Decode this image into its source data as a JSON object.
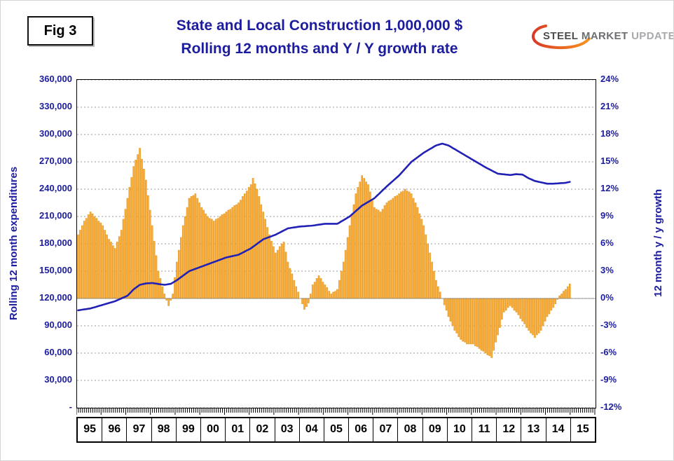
{
  "fig_label": "Fig 3",
  "title_line1": "State and Local Construction 1,000,000 $",
  "title_line2": "Rolling 12 months and Y / Y growth rate",
  "logo": {
    "word1": "STEEL",
    "word2": "MARKET",
    "word3": "UPDATE"
  },
  "colors": {
    "title_blue": "#1C1C9E",
    "axis_text": "#1C1C9E",
    "grid": "#9a9a9a",
    "bar_fill": "#FBAE3C",
    "bar_stroke": "#DE8F10",
    "line_blue": "#2121B5",
    "logo_orange_start": "#D93A26",
    "logo_orange_end": "#F7941D"
  },
  "chart_data": {
    "type": "combo bar + line",
    "title": "State and Local Construction 1,000,000 $ — Rolling 12 months and Y / Y growth rate",
    "x_start": "1995-01",
    "x_months": 240,
    "x_axis_years": [
      "95",
      "96",
      "97",
      "98",
      "99",
      "00",
      "01",
      "02",
      "03",
      "04",
      "05",
      "06",
      "07",
      "08",
      "09",
      "10",
      "11",
      "12",
      "13",
      "14",
      "15"
    ],
    "grid": "horizontal dashed",
    "left_axis": {
      "label": "Rolling 12 month expenditures",
      "min": 0,
      "max": 360000,
      "tick_step": 30000,
      "tick_labels": [
        "360,000",
        "330,000",
        "300,000",
        "270,000",
        "240,000",
        "210,000",
        "180,000",
        "150,000",
        "120,000",
        "90,000",
        "60,000",
        "30,000",
        "-"
      ]
    },
    "right_axis": {
      "label": "12 month y / y growth",
      "min": -12,
      "max": 24,
      "tick_step": 3,
      "tick_labels": [
        "24%",
        "21%",
        "18%",
        "15%",
        "12%",
        "9%",
        "6%",
        "3%",
        "0%",
        "-3%",
        "-6%",
        "-9%",
        "-12%"
      ]
    },
    "series": [
      {
        "name": "Rolling 12 month expenditures",
        "type": "line",
        "axis": "left",
        "color": "#2121B5",
        "values": [
          107000,
          107300,
          107700,
          108000,
          108300,
          108700,
          109000,
          109700,
          110300,
          111000,
          111700,
          112300,
          113000,
          113700,
          114300,
          115000,
          115700,
          116300,
          117000,
          118000,
          119000,
          120000,
          121000,
          122000,
          123000,
          125300,
          127700,
          130000,
          131700,
          133300,
          135000,
          135500,
          136000,
          136500,
          136700,
          136800,
          137000,
          136600,
          136300,
          135900,
          135500,
          135300,
          135000,
          135300,
          135700,
          136000,
          137300,
          138700,
          140000,
          141700,
          143300,
          145000,
          146700,
          148300,
          150000,
          150800,
          151700,
          152500,
          153300,
          154200,
          155000,
          155800,
          156700,
          157500,
          158300,
          159200,
          160000,
          160800,
          161700,
          162500,
          163300,
          164200,
          165000,
          165500,
          166000,
          166500,
          167000,
          167500,
          168000,
          169200,
          170300,
          171500,
          172700,
          173800,
          175000,
          176700,
          178300,
          180000,
          181700,
          183300,
          185000,
          185800,
          186700,
          187500,
          188300,
          189200,
          190000,
          191200,
          192300,
          193500,
          194700,
          195800,
          197000,
          197300,
          197700,
          198000,
          198300,
          198700,
          199000,
          199200,
          199300,
          199500,
          199700,
          199800,
          200000,
          200300,
          200700,
          201000,
          201300,
          201700,
          202000,
          202000,
          202000,
          202000,
          202000,
          202000,
          202000,
          203300,
          204700,
          206000,
          207300,
          208700,
          210000,
          212000,
          214000,
          216000,
          218000,
          220000,
          222000,
          223300,
          224700,
          226000,
          227300,
          228700,
          230000,
          232200,
          234300,
          236500,
          238700,
          240800,
          243000,
          245000,
          247000,
          249000,
          251000,
          253000,
          255000,
          257500,
          260000,
          262500,
          265000,
          267500,
          270000,
          271700,
          273300,
          275000,
          276700,
          278300,
          280000,
          281300,
          282700,
          284000,
          285300,
          286700,
          288000,
          288700,
          289300,
          290000,
          289300,
          288700,
          288000,
          286700,
          285300,
          284000,
          282700,
          281300,
          280000,
          278700,
          277300,
          276000,
          274700,
          273300,
          272000,
          270700,
          269300,
          268000,
          266700,
          265300,
          264000,
          262800,
          261700,
          260500,
          259300,
          258200,
          257000,
          256800,
          256500,
          256300,
          256000,
          255800,
          255500,
          255800,
          256200,
          256500,
          256300,
          256200,
          256000,
          254700,
          253300,
          252000,
          251000,
          250000,
          249000,
          248500,
          248000,
          247500,
          247000,
          246500,
          246000,
          246000,
          246000,
          246000,
          246200,
          246300,
          246500,
          246700,
          246800,
          247000,
          247500,
          248000
        ]
      },
      {
        "name": "12 month y / y growth",
        "type": "bar",
        "axis": "right",
        "color": "#FBAE3C",
        "stroke": "#DE8F10",
        "values": [
          7.0,
          7.5,
          8.0,
          8.5,
          8.8,
          9.2,
          9.5,
          9.3,
          9.0,
          8.8,
          8.5,
          8.3,
          8.0,
          7.5,
          7.0,
          6.5,
          6.2,
          5.8,
          5.5,
          6.2,
          6.8,
          7.5,
          8.7,
          9.8,
          11.0,
          12.2,
          13.3,
          14.5,
          15.2,
          15.8,
          16.5,
          15.3,
          14.2,
          13.0,
          11.3,
          9.7,
          8.0,
          6.3,
          4.7,
          3.0,
          2.2,
          1.3,
          0.5,
          -0.2,
          -0.8,
          -0.2,
          0.5,
          2.3,
          4.0,
          5.3,
          6.7,
          8.0,
          9.0,
          10.0,
          11.0,
          11.2,
          11.3,
          11.5,
          11.0,
          10.5,
          10.0,
          9.7,
          9.3,
          9.0,
          8.8,
          8.7,
          8.5,
          8.7,
          8.8,
          9.0,
          9.2,
          9.3,
          9.5,
          9.7,
          9.8,
          10.0,
          10.2,
          10.3,
          10.5,
          10.8,
          11.2,
          11.5,
          11.8,
          12.2,
          12.5,
          13.2,
          12.6,
          12.0,
          11.2,
          10.3,
          9.5,
          8.7,
          7.8,
          7.0,
          6.3,
          5.7,
          5.0,
          5.3,
          5.7,
          6.0,
          6.2,
          5.1,
          4.0,
          3.3,
          2.7,
          2.0,
          1.3,
          0.7,
          0.0,
          -0.6,
          -1.2,
          -0.9,
          -0.5,
          0.5,
          1.5,
          1.8,
          2.2,
          2.5,
          2.2,
          1.8,
          1.5,
          1.2,
          0.8,
          0.5,
          0.7,
          0.8,
          1.0,
          2.0,
          3.0,
          4.0,
          5.3,
          6.7,
          8.0,
          9.2,
          10.3,
          11.5,
          12.2,
          12.8,
          13.5,
          13.2,
          12.8,
          12.5,
          11.7,
          10.8,
          10.0,
          9.8,
          9.7,
          9.5,
          9.8,
          10.2,
          10.5,
          10.7,
          10.8,
          11.0,
          11.2,
          11.3,
          11.5,
          11.7,
          11.8,
          12.0,
          11.8,
          11.7,
          11.5,
          11.0,
          10.5,
          10.0,
          9.3,
          8.7,
          8.0,
          7.0,
          6.0,
          5.0,
          4.0,
          3.0,
          2.0,
          1.3,
          0.7,
          0.0,
          -0.7,
          -1.3,
          -2.0,
          -2.5,
          -3.0,
          -3.5,
          -3.8,
          -4.2,
          -4.5,
          -4.7,
          -4.8,
          -5.0,
          -5.0,
          -5.0,
          -5.0,
          -5.2,
          -5.3,
          -5.5,
          -5.7,
          -5.8,
          -6.0,
          -6.2,
          -6.3,
          -6.5,
          -5.7,
          -4.8,
          -4.0,
          -3.2,
          -2.3,
          -1.5,
          -1.3,
          -1.0,
          -0.8,
          -1.0,
          -1.3,
          -1.5,
          -1.8,
          -2.2,
          -2.5,
          -2.8,
          -3.2,
          -3.5,
          -3.8,
          -4.0,
          -4.3,
          -4.0,
          -3.8,
          -3.5,
          -3.0,
          -2.5,
          -2.0,
          -1.7,
          -1.3,
          -1.0,
          -0.6,
          -0.1,
          0.3,
          0.5,
          0.8,
          1.0,
          1.3,
          1.6
        ]
      }
    ]
  }
}
